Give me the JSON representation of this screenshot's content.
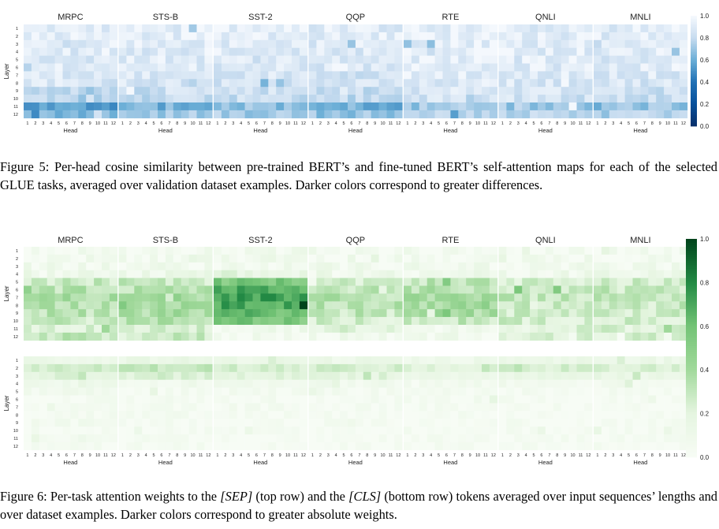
{
  "tasks": [
    "MRPC",
    "STS-B",
    "SST-2",
    "QQP",
    "RTE",
    "QNLI",
    "MNLI"
  ],
  "axis": {
    "xlabel": "Head",
    "ylabel": "Layer",
    "ticks": [
      "1",
      "2",
      "3",
      "4",
      "5",
      "6",
      "7",
      "8",
      "9",
      "10",
      "11",
      "12"
    ]
  },
  "figure5": {
    "colorbar_ticks": [
      "1.0",
      "0.8",
      "0.6",
      "0.4",
      "0.2",
      "0.0"
    ],
    "caption": "Figure 5: Per-head cosine similarity between pre-trained BERT’s and fine-tuned BERT’s self-attention maps for each of the selected GLUE tasks, averaged over validation dataset examples. Darker colors correspond to greater differences."
  },
  "figure6": {
    "colorbar_ticks": [
      "1.0",
      "0.8",
      "0.6",
      "0.4",
      "0.2",
      "0.0"
    ],
    "caption_before_sep": "Figure 6: Per-task attention weights to the ",
    "caption_sep": "[SEP]",
    "caption_middle": " (top row) and the ",
    "caption_cls": "[CLS]",
    "caption_after": " (bottom row) tokens averaged over input sequences’ lengths and over dataset examples. Darker colors correspond to greater absolute weights."
  },
  "colors": {
    "blue_light": "#f4f8fd",
    "blue_dark": "#08306b",
    "green_light": "#f7fcf5",
    "green_dark": "#00441b"
  },
  "chart_data": [
    {
      "type": "heatmap",
      "name": "Figure 5",
      "panels": [
        "MRPC",
        "STS-B",
        "SST-2",
        "QQP",
        "RTE",
        "QNLI",
        "MNLI"
      ],
      "xlabel": "Head",
      "ylabel": "Layer",
      "colorbar": [
        0.0,
        1.0
      ],
      "colormap": "Blues_r",
      "layer_mean_similarity": {
        "MRPC": [
          0.92,
          0.92,
          0.93,
          0.91,
          0.9,
          0.91,
          0.9,
          0.88,
          0.78,
          0.76,
          0.55,
          0.65
        ],
        "STS-B": [
          0.93,
          0.92,
          0.92,
          0.91,
          0.91,
          0.9,
          0.9,
          0.88,
          0.84,
          0.82,
          0.62,
          0.72
        ],
        "SST-2": [
          0.93,
          0.93,
          0.92,
          0.91,
          0.9,
          0.9,
          0.89,
          0.87,
          0.85,
          0.83,
          0.68,
          0.74
        ],
        "QQP": [
          0.91,
          0.91,
          0.9,
          0.9,
          0.88,
          0.88,
          0.87,
          0.85,
          0.82,
          0.8,
          0.62,
          0.7
        ],
        "RTE": [
          0.95,
          0.95,
          0.94,
          0.94,
          0.93,
          0.93,
          0.92,
          0.91,
          0.89,
          0.87,
          0.7,
          0.78
        ],
        "QNLI": [
          0.93,
          0.93,
          0.92,
          0.92,
          0.91,
          0.91,
          0.9,
          0.89,
          0.86,
          0.85,
          0.72,
          0.78
        ],
        "MNLI": [
          0.92,
          0.92,
          0.91,
          0.91,
          0.9,
          0.9,
          0.89,
          0.88,
          0.85,
          0.83,
          0.7,
          0.76
        ]
      }
    },
    {
      "type": "heatmap",
      "name": "Figure 6 (top row, [SEP])",
      "panels": [
        "MRPC",
        "STS-B",
        "SST-2",
        "QQP",
        "RTE",
        "QNLI",
        "MNLI"
      ],
      "xlabel": "Head",
      "ylabel": "Layer",
      "colorbar": [
        0.0,
        1.0
      ],
      "colormap": "Greens",
      "layer_mean_weight": {
        "MRPC": [
          0.04,
          0.05,
          0.06,
          0.1,
          0.28,
          0.33,
          0.38,
          0.36,
          0.32,
          0.28,
          0.22,
          0.3
        ],
        "STS-B": [
          0.04,
          0.05,
          0.06,
          0.1,
          0.28,
          0.32,
          0.4,
          0.42,
          0.38,
          0.34,
          0.25,
          0.3
        ],
        "SST-2": [
          0.05,
          0.06,
          0.07,
          0.16,
          0.55,
          0.68,
          0.72,
          0.7,
          0.62,
          0.55,
          0.07,
          0.06
        ],
        "QQP": [
          0.04,
          0.05,
          0.06,
          0.1,
          0.26,
          0.3,
          0.34,
          0.32,
          0.28,
          0.24,
          0.2,
          0.06
        ],
        "RTE": [
          0.04,
          0.05,
          0.06,
          0.1,
          0.3,
          0.34,
          0.38,
          0.4,
          0.38,
          0.3,
          0.06,
          0.05
        ],
        "QNLI": [
          0.04,
          0.05,
          0.06,
          0.1,
          0.24,
          0.3,
          0.3,
          0.28,
          0.26,
          0.24,
          0.2,
          0.22
        ],
        "MNLI": [
          0.04,
          0.05,
          0.06,
          0.1,
          0.26,
          0.3,
          0.3,
          0.28,
          0.26,
          0.24,
          0.22,
          0.24
        ]
      }
    },
    {
      "type": "heatmap",
      "name": "Figure 6 (bottom row, [CLS])",
      "panels": [
        "MRPC",
        "STS-B",
        "SST-2",
        "QQP",
        "RTE",
        "QNLI",
        "MNLI"
      ],
      "xlabel": "Head",
      "ylabel": "Layer",
      "colorbar": [
        0.0,
        1.0
      ],
      "colormap": "Greens",
      "layer_mean_weight": {
        "MRPC": [
          0.12,
          0.26,
          0.2,
          0.08,
          0.06,
          0.03,
          0.03,
          0.03,
          0.05,
          0.02,
          0.02,
          0.02
        ],
        "STS-B": [
          0.14,
          0.3,
          0.22,
          0.08,
          0.04,
          0.03,
          0.03,
          0.03,
          0.02,
          0.02,
          0.02,
          0.02
        ],
        "SST-2": [
          0.12,
          0.25,
          0.2,
          0.08,
          0.04,
          0.03,
          0.03,
          0.02,
          0.02,
          0.02,
          0.02,
          0.02
        ],
        "QQP": [
          0.12,
          0.25,
          0.18,
          0.07,
          0.04,
          0.03,
          0.03,
          0.02,
          0.02,
          0.02,
          0.02,
          0.02
        ],
        "RTE": [
          0.1,
          0.2,
          0.14,
          0.06,
          0.03,
          0.02,
          0.02,
          0.02,
          0.02,
          0.02,
          0.02,
          0.02
        ],
        "QNLI": [
          0.12,
          0.24,
          0.16,
          0.06,
          0.03,
          0.02,
          0.02,
          0.02,
          0.02,
          0.02,
          0.02,
          0.02
        ],
        "MNLI": [
          0.12,
          0.24,
          0.16,
          0.06,
          0.03,
          0.02,
          0.02,
          0.02,
          0.02,
          0.02,
          0.02,
          0.02
        ]
      }
    }
  ]
}
